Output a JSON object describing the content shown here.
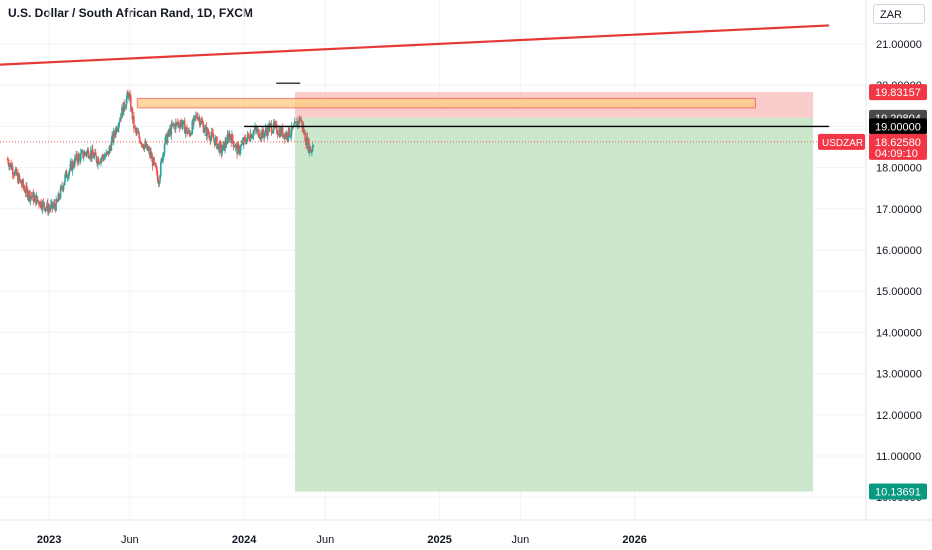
{
  "title": "U.S. Dollar / South African Rand, 1D, FXCM",
  "currency_button": "ZAR",
  "colors": {
    "up": "#26a69a",
    "down": "#ef5350",
    "trendline": "#e53935",
    "supply_zone_fill": "#ffcc80",
    "supply_zone_border": "#ef5350",
    "stop_zone": "#f8bbbb",
    "target_zone": "#c8e6c9",
    "axis_text": "#131722"
  },
  "chart_data": {
    "type": "candlestick",
    "symbol": "USDZAR",
    "interval": "1D",
    "source": "FXCM",
    "y_axis": {
      "min": 9.9,
      "max": 21.6,
      "ticks": [
        "21.00000",
        "20.00000",
        "19.00000",
        "18.00000",
        "17.00000",
        "16.00000",
        "15.00000",
        "14.00000",
        "13.00000",
        "12.00000",
        "11.00000",
        "10.00000"
      ]
    },
    "x_axis": {
      "ticks": [
        {
          "label": "2023",
          "date": "2023-01-01",
          "bold": true
        },
        {
          "label": "Jun",
          "date": "2023-06-01",
          "bold": false
        },
        {
          "label": "2024",
          "date": "2024-01-01",
          "bold": true
        },
        {
          "label": "Jun",
          "date": "2024-06-01",
          "bold": false
        },
        {
          "label": "2025",
          "date": "2025-01-01",
          "bold": true
        },
        {
          "label": "Jun",
          "date": "2025-06-01",
          "bold": false
        },
        {
          "label": "2026",
          "date": "2026-01-01",
          "bold": true
        }
      ]
    },
    "price_path": [
      [
        "2022-10-15",
        18.2
      ],
      [
        "2022-11-01",
        17.8
      ],
      [
        "2022-11-20",
        17.4
      ],
      [
        "2022-12-10",
        17.2
      ],
      [
        "2023-01-01",
        17.0
      ],
      [
        "2023-01-15",
        17.1
      ],
      [
        "2023-02-01",
        17.8
      ],
      [
        "2023-02-20",
        18.2
      ],
      [
        "2023-03-15",
        18.4
      ],
      [
        "2023-04-01",
        18.2
      ],
      [
        "2023-04-20",
        18.3
      ],
      [
        "2023-05-10",
        19.1
      ],
      [
        "2023-05-30",
        19.8
      ],
      [
        "2023-06-10",
        18.9
      ],
      [
        "2023-06-25",
        18.6
      ],
      [
        "2023-07-10",
        18.3
      ],
      [
        "2023-07-25",
        17.7
      ],
      [
        "2023-08-05",
        18.6
      ],
      [
        "2023-08-20",
        19.0
      ],
      [
        "2023-09-05",
        19.1
      ],
      [
        "2023-09-20",
        18.8
      ],
      [
        "2023-10-05",
        19.3
      ],
      [
        "2023-10-20",
        18.9
      ],
      [
        "2023-11-05",
        18.7
      ],
      [
        "2023-11-20",
        18.4
      ],
      [
        "2023-12-05",
        18.8
      ],
      [
        "2023-12-20",
        18.4
      ],
      [
        "2024-01-05",
        18.7
      ],
      [
        "2024-01-20",
        18.9
      ],
      [
        "2024-02-05",
        18.8
      ],
      [
        "2024-02-20",
        19.0
      ],
      [
        "2024-03-05",
        18.9
      ],
      [
        "2024-03-20",
        18.8
      ],
      [
        "2024-04-01",
        18.9
      ],
      [
        "2024-04-15",
        19.2
      ],
      [
        "2024-04-25",
        18.7
      ],
      [
        "2024-05-05",
        18.4
      ],
      [
        "2024-05-10",
        18.62
      ]
    ],
    "trendline": {
      "start": [
        "2022-10-01",
        20.5
      ],
      "end": [
        "2026-12-31",
        21.45
      ]
    },
    "supply_zone": {
      "start": "2023-06-15",
      "end": "2026-08-15",
      "top": 19.68,
      "bottom": 19.45
    },
    "short_position": {
      "start": "2024-04-05",
      "end": "2026-12-01",
      "stop": 19.83157,
      "entry": 19.20804,
      "target": 10.13691
    },
    "horizontal_level": {
      "start": "2024-01-01",
      "end": "2026-12-31",
      "price": 19.0
    },
    "small_mark": {
      "start": "2024-03-01",
      "end": "2024-04-15",
      "price": 20.0
    },
    "last_price": 18.6258
  },
  "price_labels": [
    {
      "text": "19.83157",
      "value": 19.83157,
      "bg": "#f23645",
      "fg": "#ffffff"
    },
    {
      "text": "19.20804",
      "value": 19.20804,
      "bg": "#4a4a4a",
      "fg": "#ffffff"
    },
    {
      "text": "19.00000",
      "value": 19.0,
      "bg": "#000000",
      "fg": "#ffffff"
    },
    {
      "text": "10.13691",
      "value": 10.13691,
      "bg": "#089981",
      "fg": "#ffffff"
    }
  ],
  "last_price_label": {
    "symbol": "USDZAR",
    "price": "18.62580",
    "countdown": "04:09:10",
    "bg": "#f23645",
    "fg": "#ffffff"
  }
}
